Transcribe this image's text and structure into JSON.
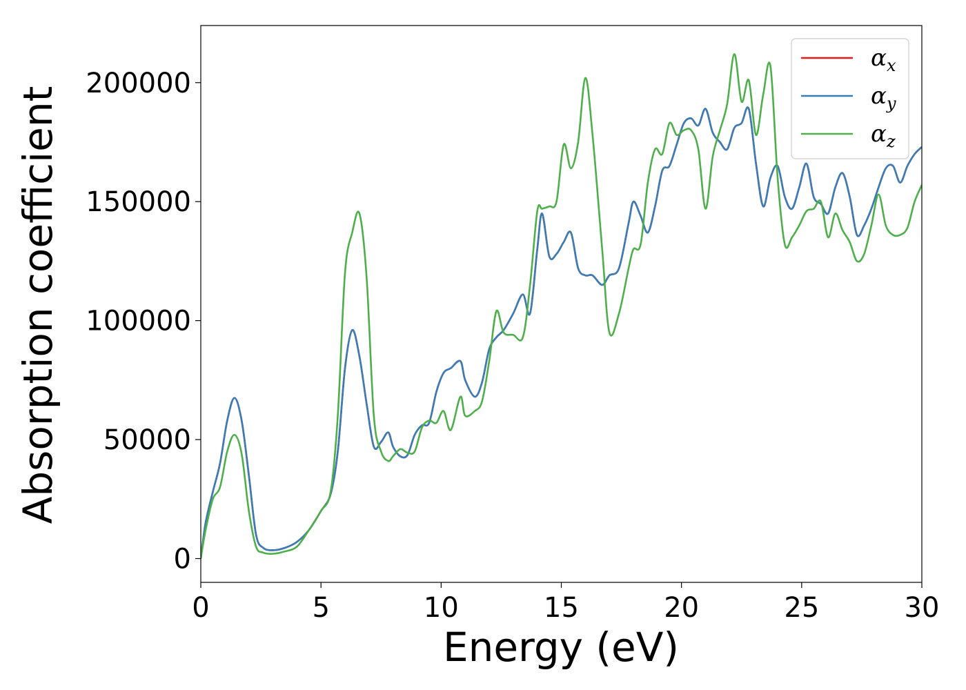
{
  "chart_data": {
    "type": "line",
    "title": "",
    "xlabel": "Energy (eV)",
    "ylabel": "Absorption coefficient",
    "xlim": [
      0,
      30
    ],
    "ylim": [
      -10000,
      224000
    ],
    "xticks": [
      0,
      5,
      10,
      15,
      20,
      25,
      30
    ],
    "xtick_labels": [
      "0",
      "5",
      "10",
      "15",
      "20",
      "25",
      "30"
    ],
    "yticks": [
      0,
      50000,
      100000,
      150000,
      200000
    ],
    "ytick_labels": [
      "0",
      "50000",
      "100000",
      "150000",
      "200000"
    ],
    "grid": false,
    "legend_position": "top-right",
    "series": [
      {
        "name": "α",
        "subscript": "x",
        "color": "#e41a1c",
        "x": [
          0,
          0.2,
          0.5,
          0.8,
          1.1,
          1.4,
          1.7,
          2.0,
          2.3,
          2.6,
          3.0,
          3.5,
          4.0,
          4.5,
          5.0,
          5.4,
          5.7,
          6.0,
          6.3,
          6.6,
          6.9,
          7.2,
          7.5,
          7.8,
          8.0,
          8.3,
          8.6,
          8.9,
          9.2,
          9.5,
          9.8,
          10.1,
          10.4,
          10.8,
          11.0,
          11.4,
          11.7,
          12.0,
          12.3,
          12.6,
          13.0,
          13.4,
          13.7,
          14.0,
          14.2,
          14.5,
          14.8,
          15.1,
          15.4,
          15.7,
          16.0,
          16.3,
          16.7,
          17.0,
          17.4,
          17.8,
          18.0,
          18.3,
          18.6,
          18.9,
          19.2,
          19.5,
          19.8,
          20.1,
          20.4,
          20.7,
          21.0,
          21.3,
          21.6,
          21.9,
          22.2,
          22.5,
          22.8,
          23.1,
          23.4,
          23.7,
          24.0,
          24.3,
          24.6,
          24.9,
          25.2,
          25.5,
          25.8,
          26.1,
          26.4,
          26.7,
          27.0,
          27.3,
          27.6,
          27.9,
          28.2,
          28.5,
          28.8,
          29.1,
          29.4,
          29.7,
          30.0
        ],
        "y": [
          0,
          15000,
          28000,
          40000,
          58000,
          67500,
          58000,
          35000,
          10000,
          4500,
          3500,
          4500,
          7000,
          12000,
          20000,
          27000,
          45000,
          80000,
          96000,
          85000,
          65000,
          47000,
          49000,
          53000,
          47000,
          43000,
          43500,
          52000,
          56000,
          57000,
          70000,
          78000,
          80000,
          83000,
          75000,
          68000,
          74000,
          88000,
          93000,
          96000,
          103000,
          111000,
          103000,
          130000,
          145000,
          127000,
          128000,
          133000,
          137000,
          122000,
          119000,
          119000,
          115000,
          119000,
          122000,
          141000,
          150000,
          144000,
          137000,
          148000,
          163000,
          165000,
          174000,
          183000,
          185000,
          182000,
          189000,
          179000,
          175000,
          172000,
          181000,
          183000,
          189000,
          166000,
          148000,
          160000,
          165000,
          152000,
          147000,
          156000,
          166000,
          152000,
          149000,
          145000,
          156000,
          162000,
          152000,
          136000,
          140000,
          147000,
          156000,
          164000,
          165000,
          158000,
          165000,
          170000,
          173000
        ]
      },
      {
        "name": "α",
        "subscript": "y",
        "color": "#377eb8",
        "x": [
          0,
          0.2,
          0.5,
          0.8,
          1.1,
          1.4,
          1.7,
          2.0,
          2.3,
          2.6,
          3.0,
          3.5,
          4.0,
          4.5,
          5.0,
          5.4,
          5.7,
          6.0,
          6.3,
          6.6,
          6.9,
          7.2,
          7.5,
          7.8,
          8.0,
          8.3,
          8.6,
          8.9,
          9.2,
          9.5,
          9.8,
          10.1,
          10.4,
          10.8,
          11.0,
          11.4,
          11.7,
          12.0,
          12.3,
          12.6,
          13.0,
          13.4,
          13.7,
          14.0,
          14.2,
          14.5,
          14.8,
          15.1,
          15.4,
          15.7,
          16.0,
          16.3,
          16.7,
          17.0,
          17.4,
          17.8,
          18.0,
          18.3,
          18.6,
          18.9,
          19.2,
          19.5,
          19.8,
          20.1,
          20.4,
          20.7,
          21.0,
          21.3,
          21.6,
          21.9,
          22.2,
          22.5,
          22.8,
          23.1,
          23.4,
          23.7,
          24.0,
          24.3,
          24.6,
          24.9,
          25.2,
          25.5,
          25.8,
          26.1,
          26.4,
          26.7,
          27.0,
          27.3,
          27.6,
          27.9,
          28.2,
          28.5,
          28.8,
          29.1,
          29.4,
          29.7,
          30.0
        ],
        "y": [
          0,
          15000,
          28000,
          40000,
          58000,
          67500,
          58000,
          35000,
          10000,
          4500,
          3500,
          4500,
          7000,
          12000,
          20000,
          27000,
          45000,
          80000,
          96000,
          85000,
          65000,
          47000,
          49000,
          53000,
          47000,
          43000,
          43500,
          52000,
          56000,
          57000,
          70000,
          78000,
          80000,
          83000,
          75000,
          68000,
          74000,
          88000,
          93000,
          96000,
          103000,
          111000,
          103000,
          130000,
          145000,
          127000,
          128000,
          133000,
          137000,
          122000,
          119000,
          119000,
          115000,
          119000,
          122000,
          141000,
          150000,
          144000,
          137000,
          148000,
          163000,
          165000,
          174000,
          183000,
          185000,
          182000,
          189000,
          179000,
          175000,
          172000,
          181000,
          183000,
          189000,
          166000,
          148000,
          160000,
          165000,
          152000,
          147000,
          156000,
          166000,
          152000,
          149000,
          145000,
          156000,
          162000,
          152000,
          136000,
          140000,
          147000,
          156000,
          164000,
          165000,
          158000,
          165000,
          170000,
          173000
        ]
      },
      {
        "name": "α",
        "subscript": "z",
        "color": "#4daf4a",
        "x": [
          0,
          0.2,
          0.5,
          0.8,
          1.1,
          1.4,
          1.7,
          2.0,
          2.3,
          2.6,
          3.0,
          3.5,
          4.0,
          4.5,
          5.0,
          5.4,
          5.7,
          6.0,
          6.3,
          6.6,
          6.9,
          7.2,
          7.5,
          7.8,
          8.0,
          8.3,
          8.6,
          8.9,
          9.2,
          9.5,
          9.8,
          10.1,
          10.4,
          10.8,
          11.0,
          11.4,
          11.7,
          12.0,
          12.3,
          12.6,
          13.0,
          13.4,
          13.7,
          14.0,
          14.2,
          14.5,
          14.8,
          15.1,
          15.4,
          15.7,
          16.0,
          16.3,
          16.7,
          17.0,
          17.4,
          17.8,
          18.0,
          18.3,
          18.6,
          18.9,
          19.2,
          19.5,
          19.8,
          20.1,
          20.4,
          20.7,
          21.0,
          21.3,
          21.6,
          21.9,
          22.2,
          22.5,
          22.8,
          23.1,
          23.4,
          23.7,
          24.0,
          24.3,
          24.6,
          24.9,
          25.2,
          25.5,
          25.8,
          26.1,
          26.4,
          26.7,
          27.0,
          27.3,
          27.6,
          27.9,
          28.2,
          28.5,
          28.8,
          29.1,
          29.4,
          29.7,
          30.0
        ],
        "y": [
          0,
          12000,
          25000,
          30000,
          45000,
          52000,
          44000,
          20000,
          5000,
          2500,
          2000,
          3000,
          5000,
          12000,
          20000,
          28000,
          60000,
          120000,
          137000,
          145000,
          118000,
          60000,
          45000,
          41000,
          43000,
          46000,
          44500,
          45000,
          55000,
          58000,
          57000,
          62000,
          54000,
          68000,
          60000,
          62000,
          66000,
          83000,
          104000,
          95000,
          94000,
          93000,
          115000,
          146000,
          147000,
          148000,
          150000,
          174000,
          164000,
          175000,
          202000,
          178000,
          130000,
          95000,
          103000,
          122000,
          130000,
          132000,
          158000,
          172000,
          170000,
          183000,
          178000,
          180000,
          180000,
          172000,
          147000,
          169000,
          180000,
          191000,
          212000,
          192000,
          201000,
          178000,
          195000,
          207000,
          160000,
          132000,
          135000,
          140000,
          146000,
          147000,
          150000,
          135000,
          145000,
          138000,
          133000,
          125000,
          128000,
          140000,
          153000,
          140000,
          136000,
          136000,
          139000,
          150000,
          157000
        ]
      }
    ]
  }
}
